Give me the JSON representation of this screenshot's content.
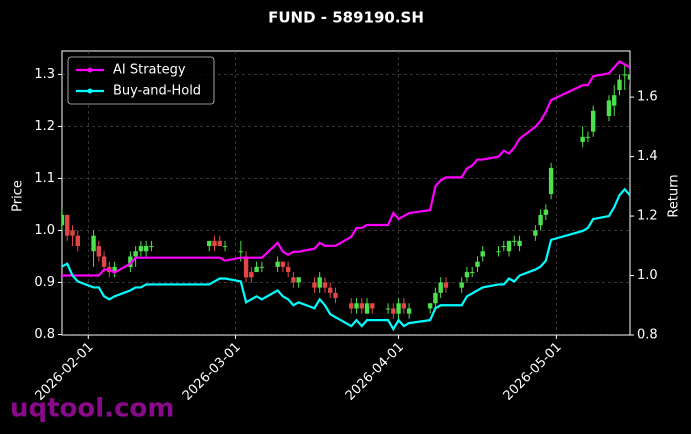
{
  "chart_data": {
    "type": "candlestick",
    "title": "FUND - 589190.SH",
    "ylabel": "Price",
    "y2label": "Return",
    "watermark": "uqtool.com",
    "x": [
      "2026-01-27",
      "2026-01-28",
      "2026-01-29",
      "2026-01-30",
      "2026-02-02",
      "2026-02-03",
      "2026-02-04",
      "2026-02-05",
      "2026-02-06",
      "2026-02-09",
      "2026-02-10",
      "2026-02-11",
      "2026-02-12",
      "2026-02-13",
      "2026-02-24",
      "2026-02-25",
      "2026-02-26",
      "2026-02-27",
      "2026-03-02",
      "2026-03-03",
      "2026-03-04",
      "2026-03-05",
      "2026-03-06",
      "2026-03-09",
      "2026-03-10",
      "2026-03-11",
      "2026-03-12",
      "2026-03-13",
      "2026-03-16",
      "2026-03-17",
      "2026-03-18",
      "2026-03-19",
      "2026-03-20",
      "2026-03-23",
      "2026-03-24",
      "2026-03-25",
      "2026-03-26",
      "2026-03-27",
      "2026-03-30",
      "2026-03-31",
      "2026-04-01",
      "2026-04-02",
      "2026-04-03",
      "2026-04-07",
      "2026-04-08",
      "2026-04-09",
      "2026-04-10",
      "2026-04-13",
      "2026-04-14",
      "2026-04-15",
      "2026-04-16",
      "2026-04-17",
      "2026-04-20",
      "2026-04-21",
      "2026-04-22",
      "2026-04-23",
      "2026-04-24",
      "2026-04-27",
      "2026-04-28",
      "2026-04-29",
      "2026-04-30",
      "2026-05-06",
      "2026-05-07",
      "2026-05-08",
      "2026-05-11",
      "2026-05-12",
      "2026-05-13",
      "2026-05-14",
      "2026-05-15"
    ],
    "open": [
      1.01,
      1.03,
      1.0,
      0.99,
      0.96,
      0.97,
      0.95,
      0.93,
      0.92,
      0.93,
      0.95,
      0.96,
      0.96,
      0.97,
      0.97,
      0.98,
      0.98,
      0.97,
      0.96,
      0.95,
      0.92,
      0.92,
      0.93,
      0.93,
      0.94,
      0.93,
      0.91,
      0.9,
      0.9,
      0.89,
      0.9,
      0.89,
      0.88,
      0.86,
      0.85,
      0.86,
      0.84,
      0.86,
      0.85,
      0.85,
      0.84,
      0.86,
      0.84,
      0.85,
      0.86,
      0.88,
      0.9,
      0.89,
      0.91,
      0.92,
      0.93,
      0.95,
      0.96,
      0.97,
      0.96,
      0.98,
      0.97,
      0.99,
      1.01,
      1.03,
      1.07,
      1.17,
      1.18,
      1.19,
      1.22,
      1.24,
      1.27,
      1.3,
      1.29
    ],
    "high": [
      1.04,
      1.03,
      1.01,
      1.0,
      1.0,
      0.98,
      0.96,
      0.94,
      0.94,
      0.96,
      0.97,
      0.98,
      0.98,
      0.98,
      0.98,
      0.99,
      0.99,
      0.98,
      0.98,
      0.96,
      0.93,
      0.94,
      0.94,
      0.95,
      0.94,
      0.94,
      0.92,
      0.91,
      0.91,
      0.92,
      0.91,
      0.9,
      0.89,
      0.87,
      0.87,
      0.87,
      0.87,
      0.86,
      0.86,
      0.86,
      0.87,
      0.87,
      0.86,
      0.86,
      0.89,
      0.91,
      0.91,
      0.91,
      0.93,
      0.93,
      0.95,
      0.97,
      0.97,
      0.98,
      0.98,
      0.99,
      0.99,
      1.01,
      1.04,
      1.05,
      1.13,
      1.2,
      1.19,
      1.24,
      1.26,
      1.28,
      1.3,
      1.32,
      1.31
    ],
    "low": [
      1.0,
      0.98,
      0.97,
      0.96,
      0.93,
      0.94,
      0.92,
      0.91,
      0.91,
      0.92,
      0.93,
      0.95,
      0.95,
      0.96,
      0.96,
      0.96,
      0.97,
      0.96,
      0.94,
      0.9,
      0.9,
      0.92,
      0.92,
      0.92,
      0.92,
      0.91,
      0.89,
      0.89,
      0.88,
      0.88,
      0.88,
      0.87,
      0.86,
      0.84,
      0.84,
      0.84,
      0.84,
      0.84,
      0.84,
      0.83,
      0.83,
      0.84,
      0.83,
      0.84,
      0.85,
      0.87,
      0.88,
      0.88,
      0.9,
      0.91,
      0.92,
      0.94,
      0.95,
      0.96,
      0.95,
      0.97,
      0.96,
      0.98,
      1.0,
      1.02,
      1.06,
      1.16,
      1.17,
      1.18,
      1.21,
      1.22,
      1.26,
      1.27,
      1.28
    ],
    "close": [
      1.03,
      0.99,
      0.99,
      0.97,
      0.99,
      0.95,
      0.93,
      0.92,
      0.93,
      0.95,
      0.96,
      0.97,
      0.97,
      0.97,
      0.98,
      0.97,
      0.97,
      0.97,
      0.96,
      0.91,
      0.91,
      0.93,
      0.93,
      0.94,
      0.93,
      0.92,
      0.9,
      0.91,
      0.89,
      0.91,
      0.89,
      0.88,
      0.87,
      0.85,
      0.86,
      0.85,
      0.86,
      0.85,
      0.85,
      0.84,
      0.86,
      0.85,
      0.85,
      0.86,
      0.88,
      0.9,
      0.89,
      0.9,
      0.92,
      0.92,
      0.94,
      0.96,
      0.96,
      0.97,
      0.98,
      0.98,
      0.98,
      1.0,
      1.03,
      1.04,
      1.12,
      1.18,
      1.18,
      1.23,
      1.25,
      1.26,
      1.29,
      1.3,
      1.3
    ],
    "up_color": "#4de04d",
    "down_color": "#e04848",
    "series": [
      {
        "name": "AI Strategy",
        "color": "#ff00ff",
        "axis": "y2",
        "values": [
          1.0,
          1.0,
          1.0,
          1.0,
          1.0,
          1.0,
          1.02,
          1.02,
          1.01,
          1.04,
          1.06,
          1.06,
          1.06,
          1.06,
          1.06,
          1.06,
          1.06,
          1.05,
          1.06,
          1.06,
          1.06,
          1.06,
          1.06,
          1.11,
          1.08,
          1.07,
          1.08,
          1.08,
          1.09,
          1.11,
          1.1,
          1.1,
          1.1,
          1.13,
          1.16,
          1.16,
          1.17,
          1.17,
          1.17,
          1.21,
          1.19,
          1.2,
          1.21,
          1.22,
          1.3,
          1.32,
          1.33,
          1.33,
          1.36,
          1.37,
          1.39,
          1.39,
          1.4,
          1.42,
          1.41,
          1.43,
          1.46,
          1.5,
          1.52,
          1.55,
          1.59,
          1.64,
          1.64,
          1.67,
          1.68,
          1.7,
          1.72,
          1.71,
          1.7
        ]
      },
      {
        "name": "Buy-and-Hold",
        "color": "#00ffff",
        "axis": "y2",
        "values": [
          1.03,
          1.04,
          1.0,
          0.98,
          0.96,
          0.96,
          0.93,
          0.92,
          0.93,
          0.95,
          0.96,
          0.96,
          0.97,
          0.97,
          0.97,
          0.98,
          0.99,
          0.99,
          0.98,
          0.91,
          0.92,
          0.93,
          0.92,
          0.95,
          0.93,
          0.92,
          0.9,
          0.91,
          0.89,
          0.92,
          0.9,
          0.87,
          0.86,
          0.83,
          0.85,
          0.83,
          0.85,
          0.85,
          0.85,
          0.82,
          0.85,
          0.83,
          0.84,
          0.85,
          0.89,
          0.9,
          0.9,
          0.9,
          0.93,
          0.94,
          0.95,
          0.96,
          0.97,
          0.97,
          0.99,
          0.98,
          1.0,
          1.02,
          1.03,
          1.05,
          1.12,
          1.15,
          1.16,
          1.19,
          1.2,
          1.23,
          1.27,
          1.29,
          1.27
        ]
      }
    ],
    "xlim": [
      "2026-01-27",
      "2026-05-15"
    ],
    "xticks": [
      "2026-02-01",
      "2026-03-01",
      "2026-04-01",
      "2026-05-01"
    ],
    "ylim": [
      0.799,
      1.345
    ],
    "yticks": [
      0.8,
      0.9,
      {
        "value": 1,
        "label": "1.0"
      },
      1.1,
      1.2,
      1.3
    ],
    "y2lim": [
      0.8,
      1.755
    ],
    "y2ticks": [
      0.8,
      {
        "value": 1,
        "label": "1.0"
      },
      1.2,
      1.4,
      1.6
    ],
    "grid": true,
    "legend": "upper left"
  }
}
